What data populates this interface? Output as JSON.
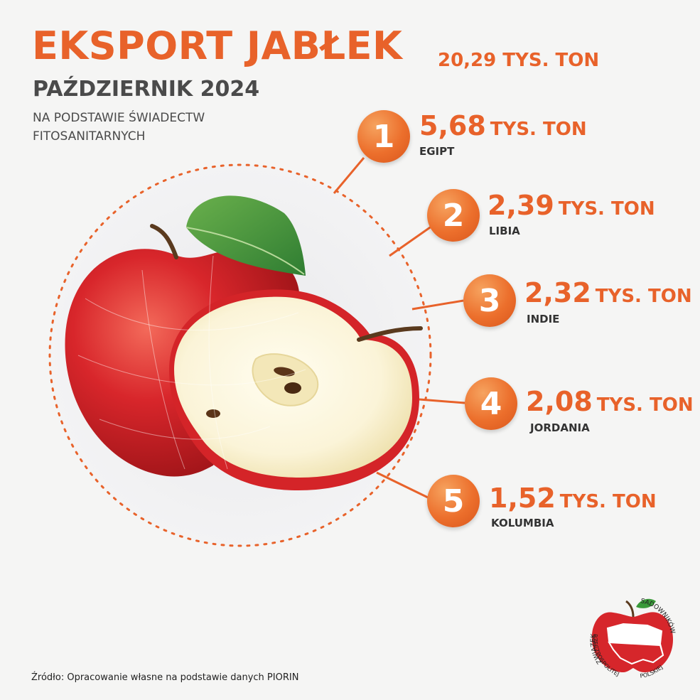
{
  "header": {
    "title": "EKSPORT JABŁEK",
    "total": "20,29 TYS. TON",
    "subtitle": "PAŹDZIERNIK 2024",
    "note": "NA PODSTAWIE ŚWIADECTW FITOSANITARNYCH"
  },
  "chart_data": {
    "type": "table",
    "title": "EKSPORT JABŁEK",
    "subtitle": "PAŹDZIERNIK 2024",
    "total": "20,29 TYS. TON",
    "unit": "TYS. TON",
    "rows": [
      {
        "rank": "1",
        "value": "5,68",
        "unit": "TYS. TON",
        "country": "EGIPT"
      },
      {
        "rank": "2",
        "value": "2,39",
        "unit": "TYS. TON",
        "country": "LIBIA"
      },
      {
        "rank": "3",
        "value": "2,32",
        "unit": "TYS. TON",
        "country": "INDIE"
      },
      {
        "rank": "4",
        "value": "2,08",
        "unit": "TYS. TON",
        "country": "JORDANIA"
      },
      {
        "rank": "5",
        "value": "1,52",
        "unit": "TYS. TON",
        "country": "KOLUMBIA"
      }
    ]
  },
  "footer": {
    "source": "Źródło: Opracowanie własne na podstawie danych PIORIN"
  },
  "logo": {
    "ring_text_left": "ZWIĄZEK",
    "ring_text_right": "SADOWNIKÓW",
    "ring_text_bottom_left": "RZECZPOSPOLITEJ",
    "ring_text_bottom_right": "POLSKIEJ"
  },
  "colors": {
    "accent": "#e8622a",
    "dark_text": "#4a4a4a",
    "background": "#f5f5f4"
  },
  "icons": {
    "illustration": "apple-icon",
    "logo": "apple-poland-map-logo"
  }
}
